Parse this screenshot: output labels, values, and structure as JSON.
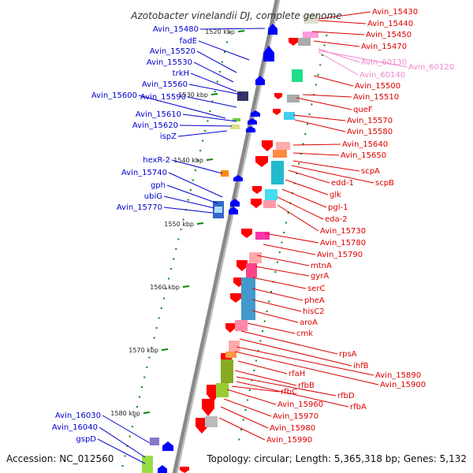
{
  "title": "Azotobacter vinelandii DJ, complete genome",
  "accession": "Accession: NC_012560",
  "topology": "Topology: circular; Length: 5,365,318 bp; Genes: 5,132",
  "colors": {
    "left_label": "#0000cc",
    "right_label": "#dd0000",
    "rna_label": "#ee88cc",
    "minus_strand": "#0000ff",
    "plus_strand": "#ff0000",
    "backbone": "#888888",
    "tick": "#008800"
  },
  "scale_ticks": [
    "1520 kbp",
    "1530 kbp",
    "1540 kbp",
    "1550 kbp",
    "1560 kbp",
    "1570 kbp",
    "1580 kbp"
  ],
  "left_labels": [
    "Avin_15480",
    "fadE",
    "Avin_15520",
    "Avin_15530",
    "trkH",
    "Avin_15560",
    "Avin_15600",
    "Avin_15590",
    "Avin_15610",
    "Avin_15620",
    "ispZ",
    "hexR-2",
    "Avin_15740",
    "gph",
    "ubiG",
    "Avin_15770",
    "Avin_16030",
    "Avin_16040",
    "gspD"
  ],
  "right_labels": [
    "Avin_15430",
    "Avin_15440",
    "Avin_15450",
    "Avin_15470",
    "Avin_15500",
    "Avin_15510",
    "queF",
    "Avin_15570",
    "Avin_15580",
    "Avin_15640",
    "Avin_15650",
    "scpA",
    "scpB",
    "edd-1",
    "glk",
    "pgl-1",
    "eda-2",
    "Avin_15730",
    "Avin_15780",
    "Avin_15790",
    "mtnA",
    "gyrA",
    "serC",
    "pheA",
    "hisC2",
    "aroA",
    "cmk",
    "rpsA",
    "ihfB",
    "Avin_15890",
    "Avin_15900",
    "rfaH",
    "rfbB",
    "rfbD",
    "rfbC",
    "rfbA",
    "Avin_15960",
    "Avin_15970",
    "Avin_15980",
    "Avin_15990"
  ],
  "rna_labels": [
    "Avin_60130",
    "Avin_60120",
    "Avin_60140"
  ]
}
